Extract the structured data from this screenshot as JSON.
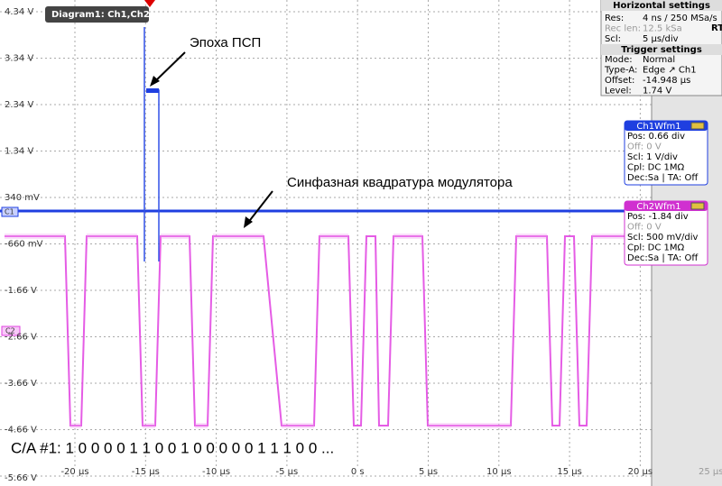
{
  "diagram": {
    "tab": "Diagram1: Ch1,Ch2",
    "y_labels": [
      "4.34 V",
      "3.34 V",
      "2.34 V",
      "1.34 V",
      "340 mV",
      "-660 mV",
      "-1.66 V",
      "-2.66 V",
      "-3.66 V",
      "-4.66 V",
      "-5.66 V"
    ],
    "x_labels": [
      "-20 µs",
      "-15 µs",
      "-10 µs",
      "-5 µs",
      "0 s",
      "5 µs",
      "10 µs",
      "15 µs",
      "20 µs",
      "25 µs"
    ],
    "ch1_marker": "C1",
    "ch2_marker": "C2",
    "annotation_1": "Эпоха ПСП",
    "annotation_2": "Синфазная квадратура модулятора",
    "caption": "C/A #1: 1 0 0 0 0 1 1 0 0 1 0 0 0 0 0 1 1 1 0 0 ..."
  },
  "horizontal": {
    "title": "Horizontal settings",
    "mode_tag": "RT",
    "rows": [
      [
        "Res:",
        "4 ns / 250 MSa/s"
      ],
      [
        "Rec len:",
        "12.5 kSa"
      ],
      [
        "Scl:",
        "5 µs/div"
      ]
    ]
  },
  "trigger": {
    "title": "Trigger settings",
    "rows": [
      [
        "Mode:",
        "Normal"
      ],
      [
        "Type-A:",
        "Edge ↗ Ch1"
      ],
      [
        "Offset:",
        "-14.948 µs"
      ],
      [
        "Level:",
        "1.74 V"
      ]
    ]
  },
  "ch1": {
    "title": "Ch1Wfm1",
    "rows": [
      "Pos: 0.66 div",
      "Off: 0 V",
      "Scl: 1 V/div",
      "Cpl: DC 1MΩ",
      "Dec:Sa | TA: Off"
    ]
  },
  "ch2": {
    "title": "Ch2Wfm1",
    "rows": [
      "Pos: -1.84 div",
      "Off: 0 V",
      "Scl: 500 mV/div",
      "Cpl: DC 1MΩ",
      "Dec:Sa | TA: Off"
    ]
  }
}
